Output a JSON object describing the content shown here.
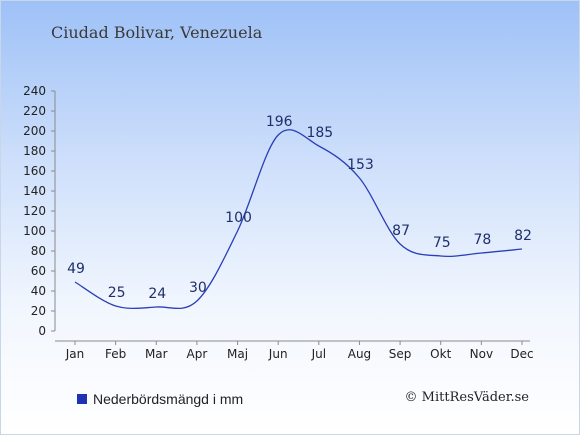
{
  "chart_data": {
    "type": "line",
    "title": "Ciudad Bolivar, Venezuela",
    "categories": [
      "Jan",
      "Feb",
      "Mar",
      "Apr",
      "Maj",
      "Jun",
      "Jul",
      "Aug",
      "Sep",
      "Okt",
      "Nov",
      "Dec"
    ],
    "series": [
      {
        "name": "Nederbördsmängd i mm",
        "values": [
          49,
          25,
          24,
          30,
          100,
          196,
          185,
          153,
          87,
          75,
          78,
          82
        ]
      }
    ],
    "ylim": [
      0,
      240
    ],
    "yticks": [
      0,
      20,
      40,
      60,
      80,
      100,
      120,
      140,
      160,
      180,
      200,
      220,
      240
    ],
    "grid": false,
    "legend": "bottom-left",
    "colors": {
      "line": "#2b3fb8",
      "swatch": "#1f32b4",
      "labels": "#1f2f6b"
    }
  },
  "copyright": "© MittResVäder.se"
}
